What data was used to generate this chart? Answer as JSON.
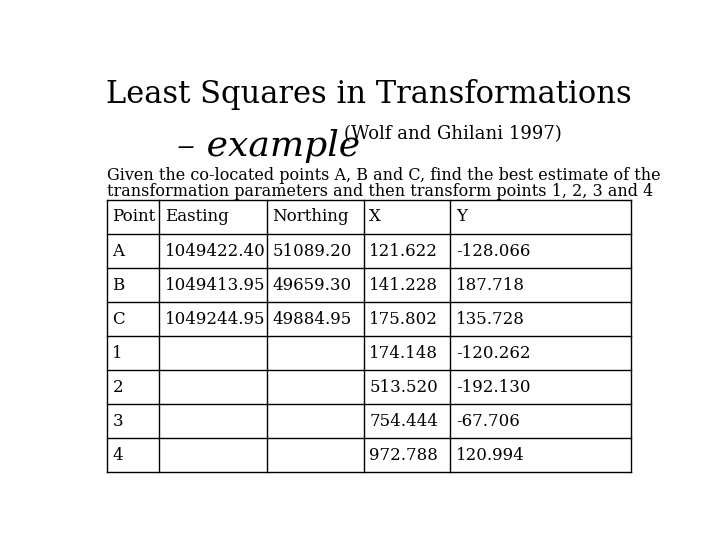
{
  "title_line1": "Least Squares in Transformations",
  "title_line2": "– example",
  "title_subtitle": "(Wolf and Ghilani 1997)",
  "description_line1": "Given the co-located points A, B and C, find the best estimate of the",
  "description_line2": "transformation parameters and then transform points 1, 2, 3 and 4",
  "col_headers": [
    "Point",
    "Easting",
    "Northing",
    "X",
    "Y"
  ],
  "rows": [
    [
      "A",
      "1049422.40",
      "51089.20",
      "121.622",
      "-128.066"
    ],
    [
      "B",
      "1049413.95",
      "49659.30",
      "141.228",
      "187.718"
    ],
    [
      "C",
      "1049244.95",
      "49884.95",
      "175.802",
      "135.728"
    ],
    [
      "1",
      "",
      "",
      "174.148",
      "-120.262"
    ],
    [
      "2",
      "",
      "",
      "513.520",
      "-192.130"
    ],
    [
      "3",
      "",
      "",
      "754.444",
      "-67.706"
    ],
    [
      "4",
      "",
      "",
      "972.788",
      "120.994"
    ]
  ],
  "bg_color": "#ffffff",
  "text_color": "#000000",
  "table_line_color": "#000000",
  "title1_fontsize": 22,
  "title2_fontsize": 26,
  "subtitle_fontsize": 13,
  "desc_fontsize": 11.5,
  "table_fontsize": 12,
  "col_props": [
    0.1,
    0.205,
    0.185,
    0.165,
    0.165
  ]
}
